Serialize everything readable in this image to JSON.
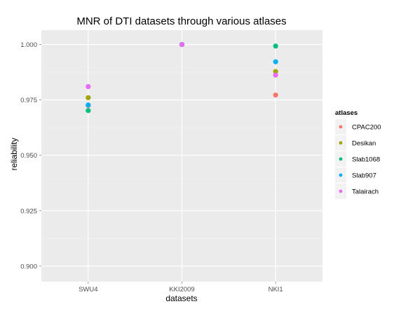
{
  "chart_data": {
    "type": "scatter",
    "title": "MNR of DTI datasets through various atlases",
    "xlabel": "datasets",
    "ylabel": "reliability",
    "categories": [
      "SWU4",
      "KKI2009",
      "NKI1"
    ],
    "ylim": [
      0.893,
      1.0065
    ],
    "yticks": [
      0.9,
      0.925,
      0.95,
      0.975,
      1.0
    ],
    "ytick_labels": [
      "0.900",
      "0.925",
      "0.950",
      "0.975",
      "1.000"
    ],
    "grid": true,
    "legend": {
      "title": "atlases",
      "placement": "right"
    },
    "series": [
      {
        "name": "CPAC200",
        "color": "#F8766D",
        "values": [
          0.9725,
          1.0,
          0.9772
        ]
      },
      {
        "name": "Desikan",
        "color": "#A3A500",
        "values": [
          0.976,
          1.0,
          0.9878
        ]
      },
      {
        "name": "Slab1068",
        "color": "#00BF7D",
        "values": [
          0.9702,
          1.0,
          0.9993
        ]
      },
      {
        "name": "Slab907",
        "color": "#00B0F6",
        "values": [
          0.9727,
          1.0,
          0.9922
        ]
      },
      {
        "name": "Talairach",
        "color": "#E76BF3",
        "values": [
          0.981,
          1.0,
          0.9862
        ]
      }
    ]
  }
}
